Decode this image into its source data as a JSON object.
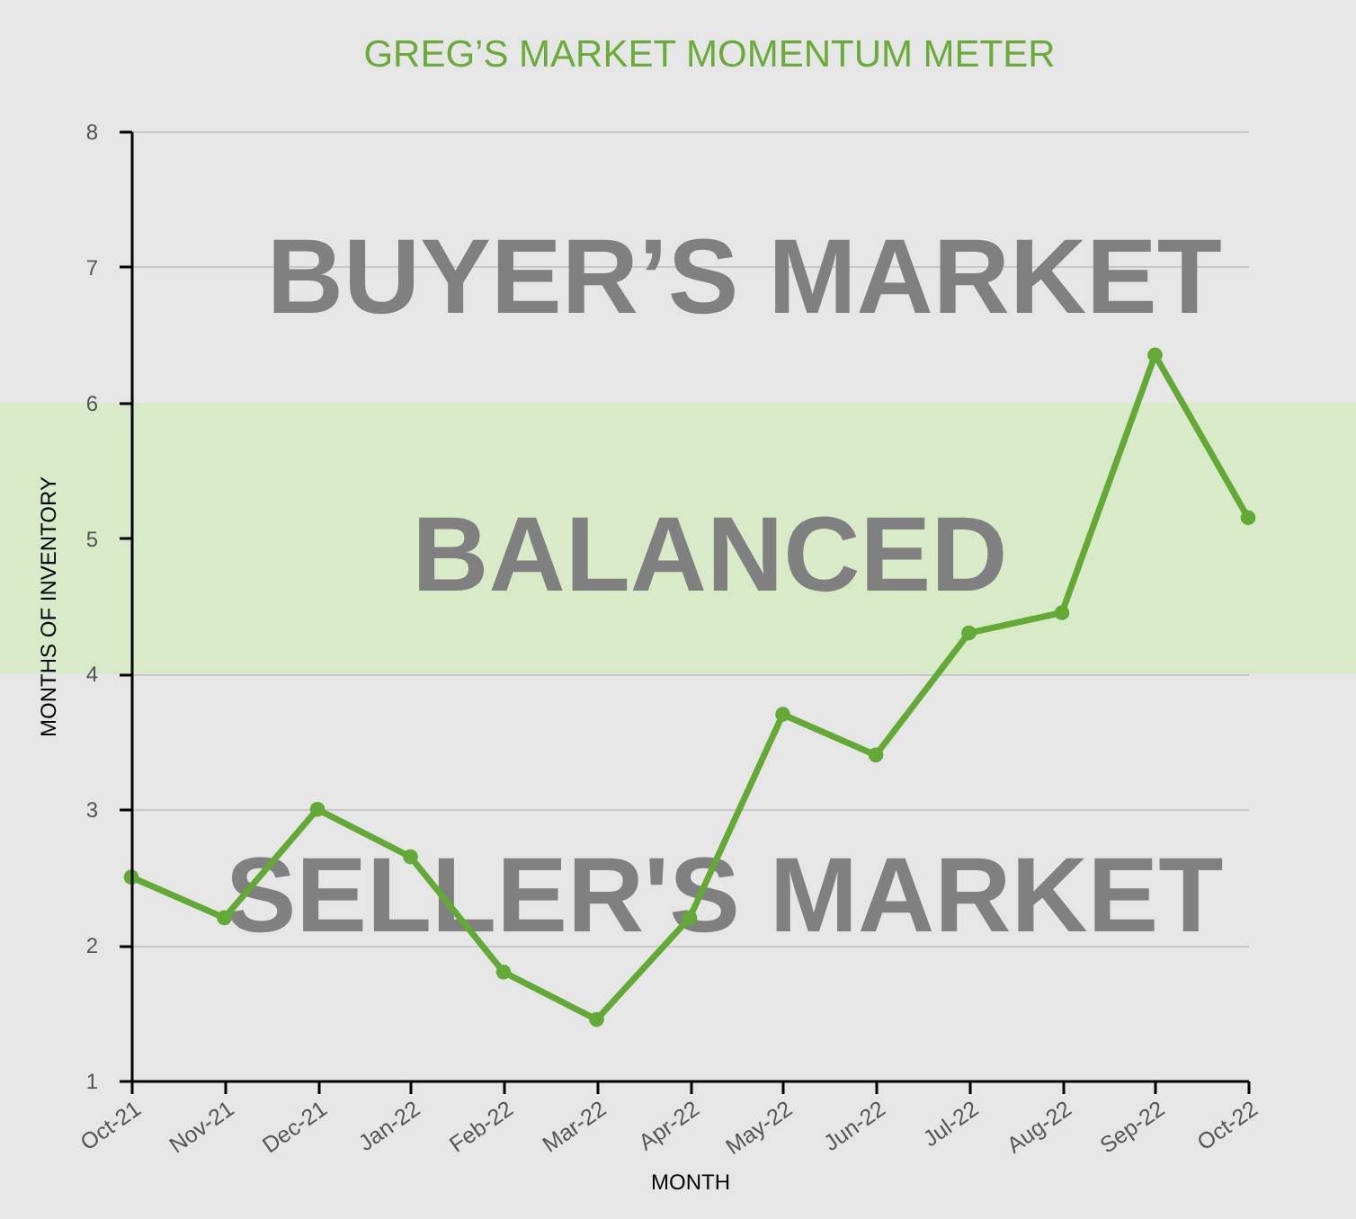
{
  "chart_data": {
    "type": "line",
    "title": "GREG’S MARKET MOMENTUM METER",
    "xlabel": "MONTH",
    "ylabel": "MONTHS OF INVENTORY",
    "categories": [
      "Oct-21",
      "Nov-21",
      "Dec-21",
      "Jan-22",
      "Feb-22",
      "Mar-22",
      "Apr-22",
      "May-22",
      "Jun-22",
      "Jul-22",
      "Aug-22",
      "Sep-22",
      "Oct-22"
    ],
    "series": [
      {
        "color": "#62aa35",
        "values": [
          2.5,
          2.2,
          3.0,
          2.65,
          1.8,
          1.45,
          2.2,
          3.7,
          3.4,
          4.3,
          4.45,
          6.35,
          5.15
        ]
      }
    ],
    "ylim": [
      1,
      8
    ],
    "yticks": [
      1,
      2,
      3,
      4,
      5,
      6,
      7,
      8
    ],
    "grid": "y",
    "marker": "circle",
    "bands": [
      {
        "axis": "y",
        "from": 4,
        "to": 6,
        "label": "BALANCED",
        "color": "#d9eac8"
      }
    ],
    "annotations": [
      "BUYER’S MARKET",
      "SELLER'S MARKET"
    ]
  }
}
